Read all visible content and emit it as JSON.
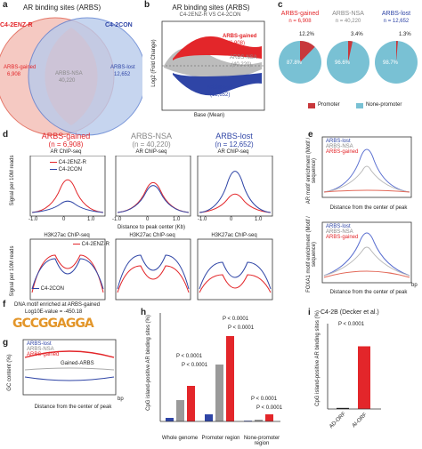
{
  "panel_a": {
    "label": "a",
    "title": "AR binding sites (ARBS)",
    "left_circle": "C4-2ENZ-R",
    "right_circle": "C4-2CON",
    "gained": "ARBS-gained",
    "gained_n": "6,908",
    "nsa": "ARBS-NSA",
    "nsa_n": "40,220",
    "lost": "ARBS-lost",
    "lost_n": "12,652"
  },
  "panel_b": {
    "label": "b",
    "title": "AR binding sites (ARBS)",
    "subtitle": "C4-2ENZ-R VS C4-2CON",
    "ylabel": "Log2 (Fold Change)",
    "xlabel": "Base (Mean)",
    "gained": "ARBS-gained",
    "gained_n": "(6,908)",
    "nsa": "ARBS-NSA",
    "nsa_n": "(40,220)",
    "lost": "ARBS-lost",
    "lost_n": "(12,652)"
  },
  "panel_c": {
    "label": "c",
    "pies": [
      {
        "title": "ARBS-gained",
        "n": "n = 6,908",
        "top": "12.2%",
        "bottom": "87.8%",
        "frac": 0.122
      },
      {
        "title": "ARBS-NSA",
        "n": "n = 40,220",
        "top": "3.4%",
        "bottom": "96.6%",
        "frac": 0.034
      },
      {
        "title": "ARBS-lost",
        "n": "n = 12,652",
        "top": "1.3%",
        "bottom": "98.7%",
        "frac": 0.013
      }
    ],
    "legend_promoter": "Promoter",
    "legend_none": "None-promoter"
  },
  "panel_d": {
    "label": "d",
    "col1": "ARBS-gained",
    "col1_n": "(n = 6,908)",
    "col2": "ARBS-NSA",
    "col2_n": "(n = 40,220)",
    "col3": "ARBS-lost",
    "col3_n": "(n = 12,652)",
    "top_title": "AR ChIP-seq",
    "bottom_title": "H3K27ac ChIP-seq",
    "ylabel": "Signal per 10M reads",
    "xlabel": "Distance to peak center (Kb)",
    "leg1": "C4-2ENZ-R",
    "leg2": "C4-2CON",
    "ticks": [
      "-1.0",
      "-0.5",
      "0",
      "0.5",
      "1.0"
    ]
  },
  "panel_e": {
    "label": "e",
    "ylabel1": "AR motif enrichment (Motif / sequence)",
    "ylabel2": "FOXA1 motif enrichment (Motif / sequence)",
    "xlabel": "Distance from the center of peak",
    "leg": [
      "ARBS-lost",
      "ARBS-NSA",
      "ARBS-gained"
    ],
    "ticks": [
      "-1000",
      "-500",
      "0",
      "500",
      "1000"
    ],
    "unit": "bp"
  },
  "panel_f": {
    "label": "f",
    "title": "DNA motif enriched at ARBS-gained",
    "evalue": "Log10E-value = -450.18",
    "logo": "GCCGGAGGA"
  },
  "panel_g": {
    "label": "g",
    "ylabel": "GC content (%)",
    "xlabel": "Distance from the center of peak",
    "leg": [
      "ARBS-lost",
      "ARBS-NSA",
      "ARBS-gained"
    ],
    "annot": "Gained-ARBS",
    "ticks": [
      "-1000",
      "-500",
      "0",
      "500",
      "1000"
    ],
    "unit": "bp"
  },
  "panel_h": {
    "label": "h",
    "ylabel": "CpG island-positive AR binding sites (%)",
    "groups": [
      "Whole genome",
      "Promoter region",
      "None-promoter region"
    ],
    "bars": [
      "ARBS-lost",
      "ARBS-NSA",
      "ARBS-gained"
    ],
    "pvals": [
      "P < 0.0001",
      "P < 0.0001",
      "P < 0.0001",
      "P < 0.0001",
      "P < 0.0001",
      "P < 0.0001"
    ]
  },
  "panel_i": {
    "label": "i",
    "title": "C4-2B (Decker et al.)",
    "ylabel": "CpG island-positive AR binding sites (%)",
    "bars": [
      "AD-ORF",
      "AI-ORF"
    ],
    "pval": "P < 0.0001"
  },
  "chart_data": [
    {
      "type": "bar",
      "panel": "h",
      "categories": [
        "Whole genome",
        "Promoter region",
        "None-promoter region"
      ],
      "series": [
        {
          "name": "ARBS-lost",
          "values": [
            1,
            2,
            0.2
          ]
        },
        {
          "name": "ARBS-NSA",
          "values": [
            6,
            16,
            0.5
          ]
        },
        {
          "name": "ARBS-gained",
          "values": [
            10,
            24,
            2
          ]
        }
      ]
    },
    {
      "type": "bar",
      "panel": "i",
      "categories": [
        "AD-ORF",
        "AI-ORF"
      ],
      "values": [
        0.5,
        30
      ],
      "ylim": [
        0,
        40
      ]
    }
  ]
}
